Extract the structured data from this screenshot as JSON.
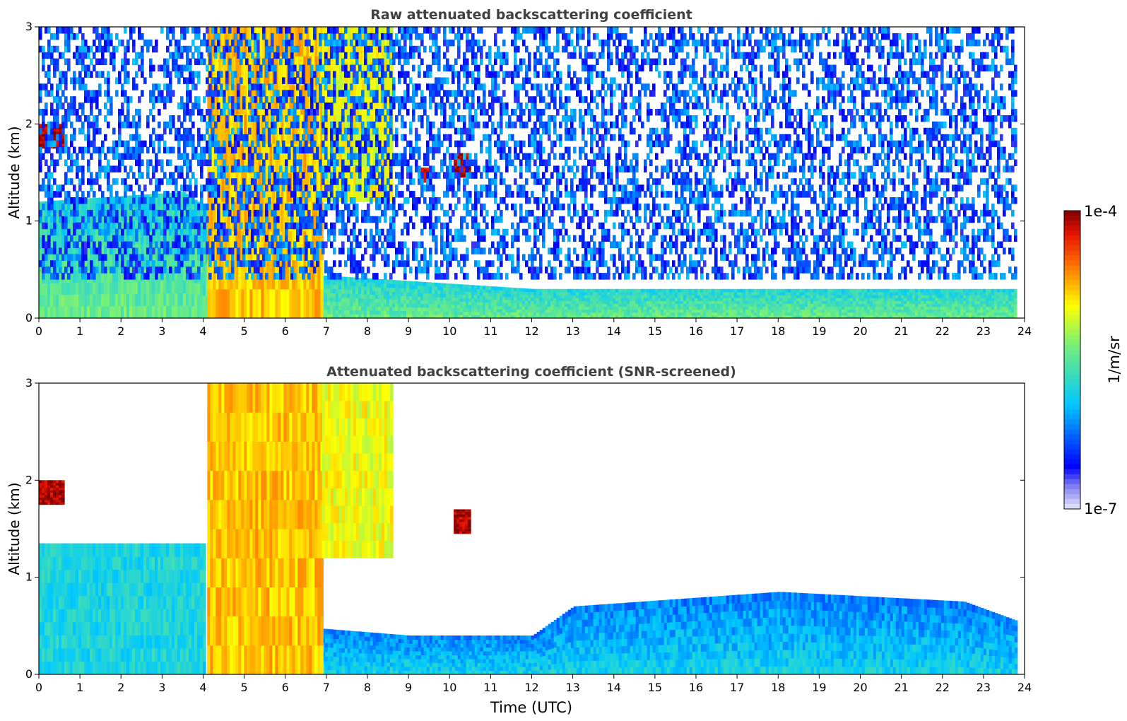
{
  "colorbar": {
    "max_label": "1e-4",
    "min_label": "1e-7",
    "unit_label": "1/m/sr",
    "scale": "log",
    "vmin": 1e-07,
    "vmax": 0.0001,
    "colormap": "jet-like with light-lavender low end"
  },
  "chart_data": [
    {
      "type": "heatmap",
      "title": "Raw attenuated backscattering coefficient",
      "xlabel": "",
      "ylabel": "Altitude (km)",
      "xlim": [
        0,
        24
      ],
      "ylim": [
        0,
        3
      ],
      "x_ticks": [
        "0",
        "1",
        "2",
        "3",
        "4",
        "5",
        "6",
        "7",
        "8",
        "9",
        "10",
        "11",
        "12",
        "13",
        "14",
        "15",
        "16",
        "17",
        "18",
        "19",
        "20",
        "21",
        "22",
        "23",
        "24"
      ],
      "y_ticks": [
        "0",
        "1",
        "2",
        "3"
      ],
      "data_extent_x": [
        0,
        23.8
      ],
      "colors": [
        "#e8e8f8",
        "#0000ff",
        "#00c8ff",
        "#ffff00",
        "#ff3000",
        "#800000"
      ],
      "features": [
        {
          "name": "boundary layer",
          "x_range": [
            0,
            23.8
          ],
          "top_km_at": [
            [
              0,
              1.2
            ],
            [
              3.5,
              1.3
            ],
            [
              6.5,
              0.45
            ],
            [
              12,
              0.3
            ],
            [
              16,
              0.3
            ],
            [
              23.8,
              0.3
            ]
          ],
          "level_log10": -5.8
        },
        {
          "name": "elevated aerosol layer",
          "x_range": [
            0,
            0.6
          ],
          "altitude_km": [
            1.75,
            2.0
          ],
          "level_log10": -4.1
        },
        {
          "name": "convective plume",
          "x_range": [
            4.1,
            6.9
          ],
          "altitude_km": [
            0,
            3.0
          ],
          "level_log10": -4.8
        },
        {
          "name": "upper plume",
          "x_range": [
            6.9,
            8.6
          ],
          "altitude_km": [
            1.2,
            3.0
          ],
          "level_log10": -5.0
        },
        {
          "name": "isolated cloud",
          "x_range": [
            10.1,
            10.5
          ],
          "altitude_km": [
            1.45,
            1.7
          ],
          "level_log10": -4.1
        },
        {
          "name": "isolated cloud",
          "x_range": [
            9.3,
            9.5
          ],
          "altitude_km": [
            1.4,
            1.55
          ],
          "level_log10": -4.2
        },
        {
          "name": "noisy free troposphere",
          "x_range": [
            0,
            23.8
          ],
          "altitude_km": [
            0.4,
            3.0
          ],
          "level_log10": -6.3
        }
      ]
    },
    {
      "type": "heatmap",
      "title": "Attenuated backscattering coefficient (SNR-screened)",
      "xlabel": "Time (UTC)",
      "ylabel": "Altitude (km)",
      "xlim": [
        0,
        24
      ],
      "ylim": [
        0,
        3
      ],
      "x_ticks": [
        "0",
        "1",
        "2",
        "3",
        "4",
        "5",
        "6",
        "7",
        "8",
        "9",
        "10",
        "11",
        "12",
        "13",
        "14",
        "15",
        "16",
        "17",
        "18",
        "19",
        "20",
        "21",
        "22",
        "23",
        "24"
      ],
      "y_ticks": [
        "0",
        "1",
        "2",
        "3"
      ],
      "data_extent_x": [
        0,
        23.8
      ],
      "features": [
        {
          "name": "boundary layer",
          "x_range": [
            0,
            4.0
          ],
          "altitude_km": [
            0,
            1.35
          ],
          "level_log10": -5.8
        },
        {
          "name": "boundary layer",
          "x_range": [
            6.0,
            23.8
          ],
          "top_km_at": [
            [
              6.0,
              0.5
            ],
            [
              9,
              0.4
            ],
            [
              12,
              0.4
            ],
            [
              13,
              0.7
            ],
            [
              18,
              0.85
            ],
            [
              22.5,
              0.75
            ],
            [
              23.8,
              0.55
            ]
          ],
          "level_log10": -6.2
        },
        {
          "name": "elevated aerosol layer",
          "x_range": [
            0,
            0.6
          ],
          "altitude_km": [
            1.75,
            2.0
          ],
          "level_log10": -4.1
        },
        {
          "name": "convective plume",
          "x_range": [
            4.1,
            6.9
          ],
          "altitude_km": [
            0,
            3.0
          ],
          "level_log10": -4.8
        },
        {
          "name": "upper plume",
          "x_range": [
            6.9,
            8.6
          ],
          "altitude_km": [
            1.2,
            3.0
          ],
          "level_log10": -5.0
        },
        {
          "name": "isolated cloud",
          "x_range": [
            10.1,
            10.5
          ],
          "altitude_km": [
            1.45,
            1.7
          ],
          "level_log10": -4.1
        }
      ]
    }
  ]
}
